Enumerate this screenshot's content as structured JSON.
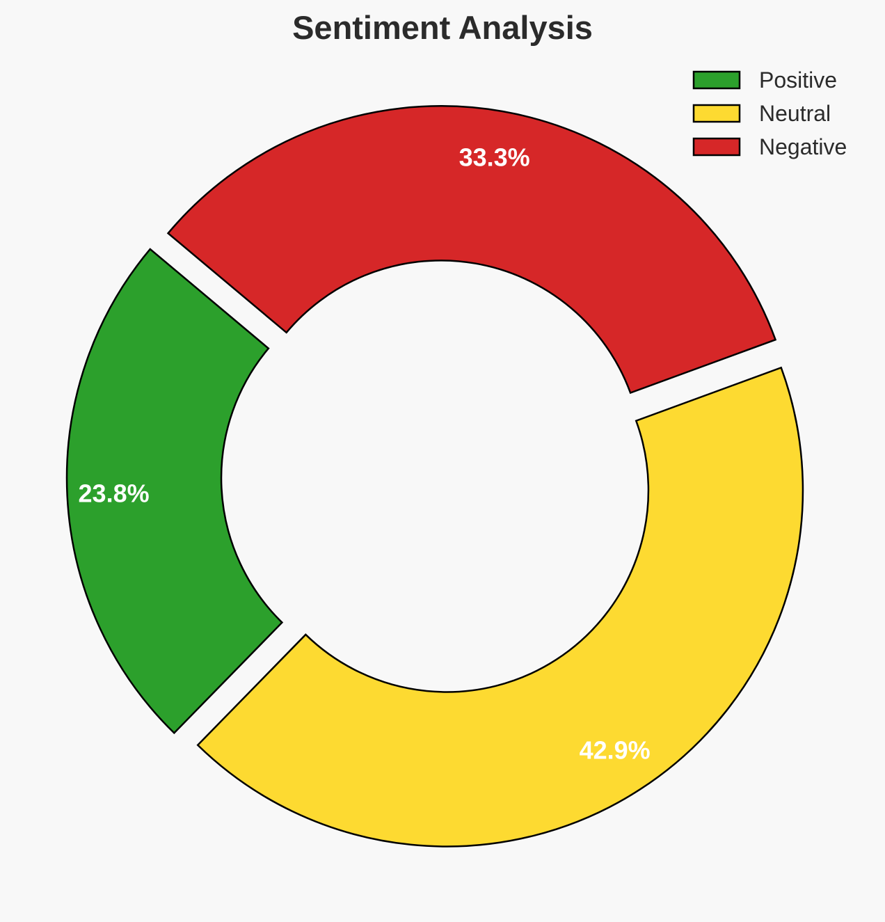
{
  "chart_data": {
    "type": "pie",
    "variant": "donut",
    "title": "Sentiment Analysis",
    "categories": [
      "Positive",
      "Neutral",
      "Negative"
    ],
    "values": [
      23.8,
      42.9,
      33.3
    ],
    "value_labels": [
      "23.8%",
      "42.9%",
      "33.3%"
    ],
    "colors": [
      "#2ca02c",
      "#fdda31",
      "#d62728"
    ],
    "exploded": true,
    "legend_position": "top-right"
  }
}
